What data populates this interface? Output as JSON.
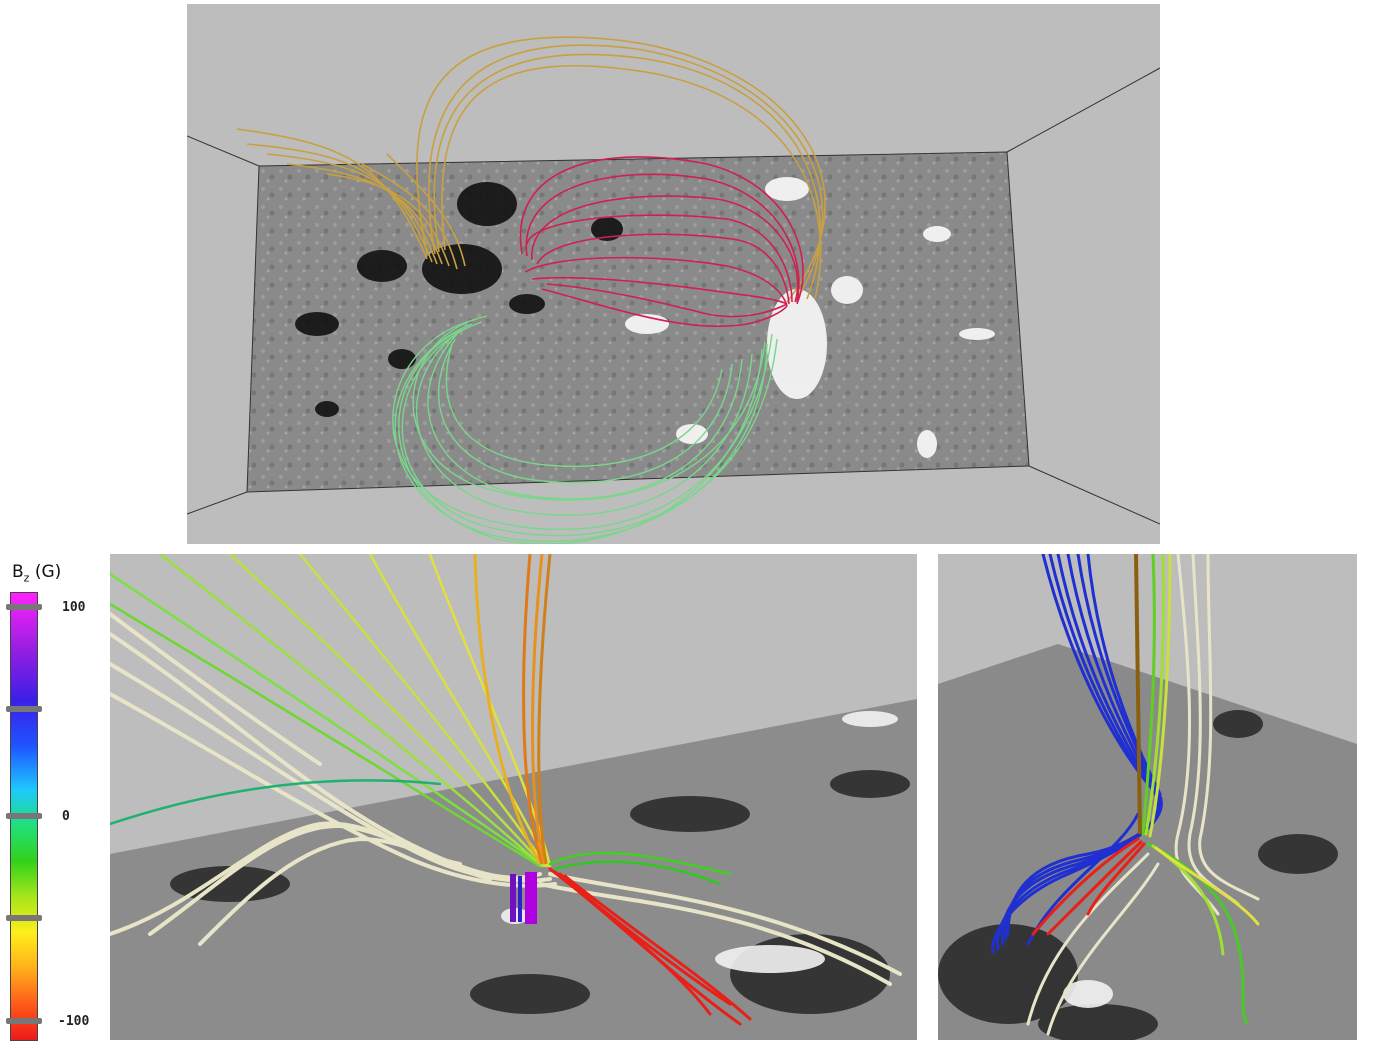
{
  "colorbar": {
    "title_main": "B",
    "title_sub": "z",
    "title_unit": "(G)",
    "labels": [
      "100",
      "0",
      "-100"
    ],
    "gradient_colors": [
      "#ff22ff",
      "#3b1fe8",
      "#1fc8ff",
      "#32d21a",
      "#ffee1a",
      "#ee1a1a"
    ]
  },
  "panels": {
    "top": "Magnetic field lines over a grayscale magnetogram (gold, red, green bundles)",
    "bottom_left": "Close-up of field lines colored by Bz over magnetogram",
    "bottom_right": "Side view of twisted field lines colored by Bz"
  },
  "colors": {
    "gold_lines": "#c8a040",
    "red_lines": "#d02050",
    "green_lines": "#7ad68a",
    "cream_lines": "#e8e4c8",
    "blue_lines": "#2030d0",
    "box_gray": "#bdbdbd"
  }
}
